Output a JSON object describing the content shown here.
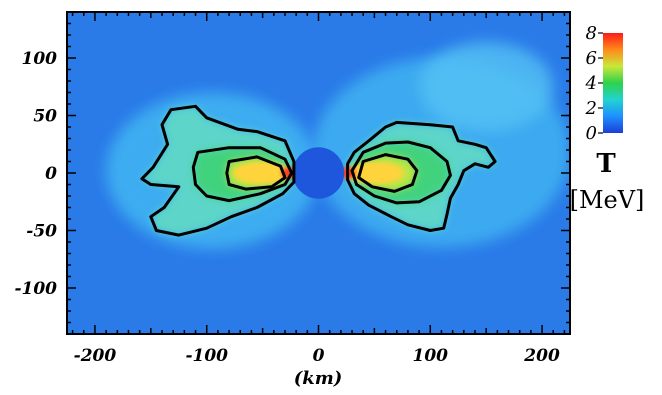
{
  "chart_data": {
    "type": "heatmap",
    "title": "",
    "xlabel": "(km)",
    "ylabel": "",
    "xlim": [
      -225,
      225
    ],
    "ylim": [
      -140,
      140
    ],
    "x_ticks": [
      -200,
      -100,
      0,
      100,
      200
    ],
    "x_tick_labels": [
      "-200",
      "-100",
      "0",
      "100",
      "200"
    ],
    "y_ticks": [
      100,
      50,
      0,
      -50,
      -100
    ],
    "y_tick_labels": [
      "100",
      "50",
      "0",
      "-50",
      "-100"
    ],
    "colorbar": {
      "quantity": "T",
      "unit": "[MeV]",
      "range": [
        0,
        8
      ],
      "ticks": [
        8,
        6,
        4,
        2,
        0
      ],
      "tick_labels": [
        "8",
        "6",
        "4",
        "2",
        "0"
      ],
      "colors": [
        "#1a3fd6",
        "#1e90ff",
        "#22d3d0",
        "#2ed24a",
        "#c9e83a",
        "#ff8a1a",
        "#ff1a1a"
      ]
    },
    "central_region": {
      "x": 0,
      "y": 0,
      "radius_km": 23,
      "T_MeV": 0.5
    },
    "hot_lobes": [
      {
        "side": "left",
        "peak_x": -40,
        "peak_y": 0,
        "peak_T_MeV": 7.5
      },
      {
        "side": "right",
        "peak_x": 40,
        "peak_y": 0,
        "peak_T_MeV": 7.5
      }
    ],
    "contours": {
      "left": [
        [
          [
            -132,
            55
          ],
          [
            -110,
            58
          ],
          [
            -100,
            48
          ],
          [
            -72,
            38
          ],
          [
            -55,
            36
          ],
          [
            -30,
            28
          ],
          [
            -22,
            10
          ],
          [
            -22,
            -8
          ],
          [
            -32,
            -18
          ],
          [
            -55,
            -30
          ],
          [
            -78,
            -38
          ],
          [
            -100,
            -48
          ],
          [
            -125,
            -54
          ],
          [
            -145,
            -50
          ],
          [
            -150,
            -38
          ],
          [
            -138,
            -30
          ],
          [
            -125,
            -12
          ],
          [
            -150,
            -10
          ],
          [
            -158,
            -5
          ],
          [
            -148,
            5
          ],
          [
            -135,
            25
          ],
          [
            -140,
            42
          ],
          [
            -132,
            55
          ]
        ],
        [
          [
            -108,
            18
          ],
          [
            -80,
            22
          ],
          [
            -52,
            22
          ],
          [
            -30,
            12
          ],
          [
            -24,
            0
          ],
          [
            -30,
            -10
          ],
          [
            -52,
            -18
          ],
          [
            -80,
            -24
          ],
          [
            -100,
            -20
          ],
          [
            -110,
            -10
          ],
          [
            -112,
            5
          ],
          [
            -108,
            18
          ]
        ],
        [
          [
            -80,
            10
          ],
          [
            -55,
            14
          ],
          [
            -34,
            6
          ],
          [
            -30,
            -4
          ],
          [
            -42,
            -12
          ],
          [
            -65,
            -14
          ],
          [
            -80,
            -10
          ],
          [
            -82,
            0
          ],
          [
            -80,
            10
          ]
        ]
      ],
      "right": [
        [
          [
            70,
            44
          ],
          [
            100,
            42
          ],
          [
            120,
            40
          ],
          [
            125,
            28
          ],
          [
            140,
            25
          ],
          [
            150,
            22
          ],
          [
            158,
            10
          ],
          [
            152,
            5
          ],
          [
            140,
            8
          ],
          [
            130,
            2
          ],
          [
            125,
            -10
          ],
          [
            118,
            -22
          ],
          [
            115,
            -36
          ],
          [
            112,
            -48
          ],
          [
            100,
            -50
          ],
          [
            80,
            -45
          ],
          [
            65,
            -38
          ],
          [
            45,
            -28
          ],
          [
            32,
            -18
          ],
          [
            26,
            -6
          ],
          [
            26,
            8
          ],
          [
            32,
            18
          ],
          [
            45,
            28
          ],
          [
            60,
            40
          ],
          [
            70,
            44
          ]
        ],
        [
          [
            40,
            18
          ],
          [
            60,
            26
          ],
          [
            80,
            27
          ],
          [
            100,
            22
          ],
          [
            115,
            10
          ],
          [
            118,
            -2
          ],
          [
            110,
            -15
          ],
          [
            90,
            -25
          ],
          [
            70,
            -26
          ],
          [
            50,
            -20
          ],
          [
            34,
            -10
          ],
          [
            30,
            2
          ],
          [
            40,
            18
          ]
        ],
        [
          [
            40,
            10
          ],
          [
            60,
            16
          ],
          [
            80,
            12
          ],
          [
            88,
            2
          ],
          [
            84,
            -10
          ],
          [
            68,
            -16
          ],
          [
            48,
            -12
          ],
          [
            36,
            -4
          ],
          [
            40,
            10
          ]
        ]
      ]
    }
  }
}
